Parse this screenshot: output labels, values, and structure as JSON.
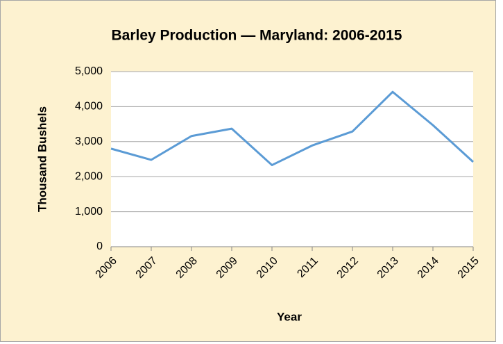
{
  "chart_data": {
    "type": "line",
    "title": "Barley Production — Maryland: 2006-2015",
    "x_label": "Year",
    "y_label": "Thousand Bushels",
    "categories": [
      "2006",
      "2007",
      "2008",
      "2009",
      "2010",
      "2011",
      "2012",
      "2013",
      "2014",
      "2015"
    ],
    "series": [
      {
        "name": "Barley Production",
        "color": "#5b9bd5",
        "values": [
          2800,
          2480,
          3160,
          3370,
          2330,
          2890,
          3290,
          4420,
          3470,
          2420
        ]
      }
    ],
    "ylim": [
      0,
      5000
    ],
    "yticks": [
      0,
      {
        "value": 1000,
        "label": "1,000"
      },
      {
        "value": 2000,
        "label": "2,000"
      },
      {
        "value": 3000,
        "label": "3,000"
      },
      {
        "value": 4000,
        "label": "4,000"
      },
      {
        "value": 5000,
        "label": "5,000"
      }
    ],
    "grid": true
  }
}
